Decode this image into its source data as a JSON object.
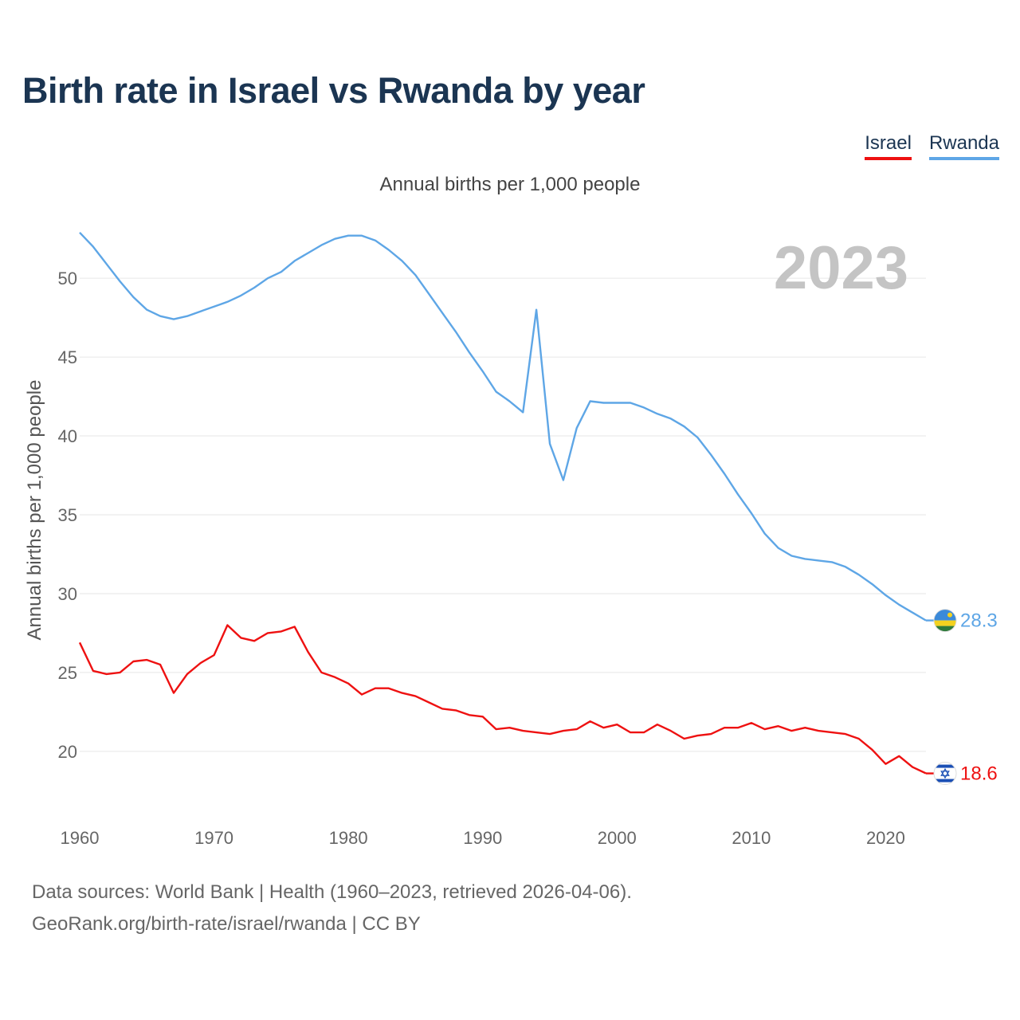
{
  "title": "Birth rate in Israel vs Rwanda by year",
  "subtitle": "Annual births per 1,000 people",
  "legend": [
    {
      "name": "Israel",
      "color": "#ee1111"
    },
    {
      "name": "Rwanda",
      "color": "#5ea6e6"
    }
  ],
  "footer": {
    "line1": "Data sources: World Bank | Health (1960–2023, retrieved 2026-04-06).",
    "line2": "GeoRank.org/birth-rate/israel/rwanda | CC BY"
  },
  "year_label": "2023",
  "chart_data": {
    "type": "line",
    "title": "Birth rate in Israel vs Rwanda by year",
    "xlabel": "",
    "ylabel": "Annual births per 1,000 people",
    "xlim": [
      1960,
      2023
    ],
    "ylim": [
      16,
      54
    ],
    "x_ticks": [
      1960,
      1970,
      1980,
      1990,
      2000,
      2010,
      2020
    ],
    "y_ticks": [
      20,
      25,
      30,
      35,
      40,
      45,
      50
    ],
    "grid": true,
    "x": [
      1960,
      1961,
      1962,
      1963,
      1964,
      1965,
      1966,
      1967,
      1968,
      1969,
      1970,
      1971,
      1972,
      1973,
      1974,
      1975,
      1976,
      1977,
      1978,
      1979,
      1980,
      1981,
      1982,
      1983,
      1984,
      1985,
      1986,
      1987,
      1988,
      1989,
      1990,
      1991,
      1992,
      1993,
      1994,
      1995,
      1996,
      1997,
      1998,
      1999,
      2000,
      2001,
      2002,
      2003,
      2004,
      2005,
      2006,
      2007,
      2008,
      2009,
      2010,
      2011,
      2012,
      2013,
      2014,
      2015,
      2016,
      2017,
      2018,
      2019,
      2020,
      2021,
      2022,
      2023
    ],
    "series": [
      {
        "name": "Israel",
        "color": "#ee1111",
        "end_label": "18.6",
        "values": [
          26.9,
          25.1,
          24.9,
          25.0,
          25.7,
          25.8,
          25.5,
          23.7,
          24.9,
          25.6,
          26.1,
          28.0,
          27.2,
          27.0,
          27.5,
          27.6,
          27.9,
          26.3,
          25.0,
          24.7,
          24.3,
          23.6,
          24.0,
          24.0,
          23.7,
          23.5,
          23.1,
          22.7,
          22.6,
          22.3,
          22.2,
          21.4,
          21.5,
          21.3,
          21.2,
          21.1,
          21.3,
          21.4,
          21.9,
          21.5,
          21.7,
          21.2,
          21.2,
          21.7,
          21.3,
          20.8,
          21.0,
          21.1,
          21.5,
          21.5,
          21.8,
          21.4,
          21.6,
          21.3,
          21.5,
          21.3,
          21.2,
          21.1,
          20.8,
          20.1,
          19.2,
          19.7,
          19.0,
          18.6
        ]
      },
      {
        "name": "Rwanda",
        "color": "#5ea6e6",
        "end_label": "28.3",
        "values": [
          52.9,
          52.0,
          50.9,
          49.8,
          48.8,
          48.0,
          47.6,
          47.4,
          47.6,
          47.9,
          48.2,
          48.5,
          48.9,
          49.4,
          50.0,
          50.4,
          51.1,
          51.6,
          52.1,
          52.5,
          52.7,
          52.7,
          52.4,
          51.8,
          51.1,
          50.2,
          49.0,
          47.8,
          46.6,
          45.3,
          44.1,
          42.8,
          42.2,
          41.5,
          48.0,
          39.5,
          37.2,
          40.5,
          42.2,
          42.1,
          42.1,
          42.1,
          41.8,
          41.4,
          41.1,
          40.6,
          39.9,
          38.8,
          37.6,
          36.3,
          35.1,
          33.8,
          32.9,
          32.4,
          32.2,
          32.1,
          32.0,
          31.7,
          31.2,
          30.6,
          29.9,
          29.3,
          28.8,
          28.3
        ]
      }
    ]
  }
}
